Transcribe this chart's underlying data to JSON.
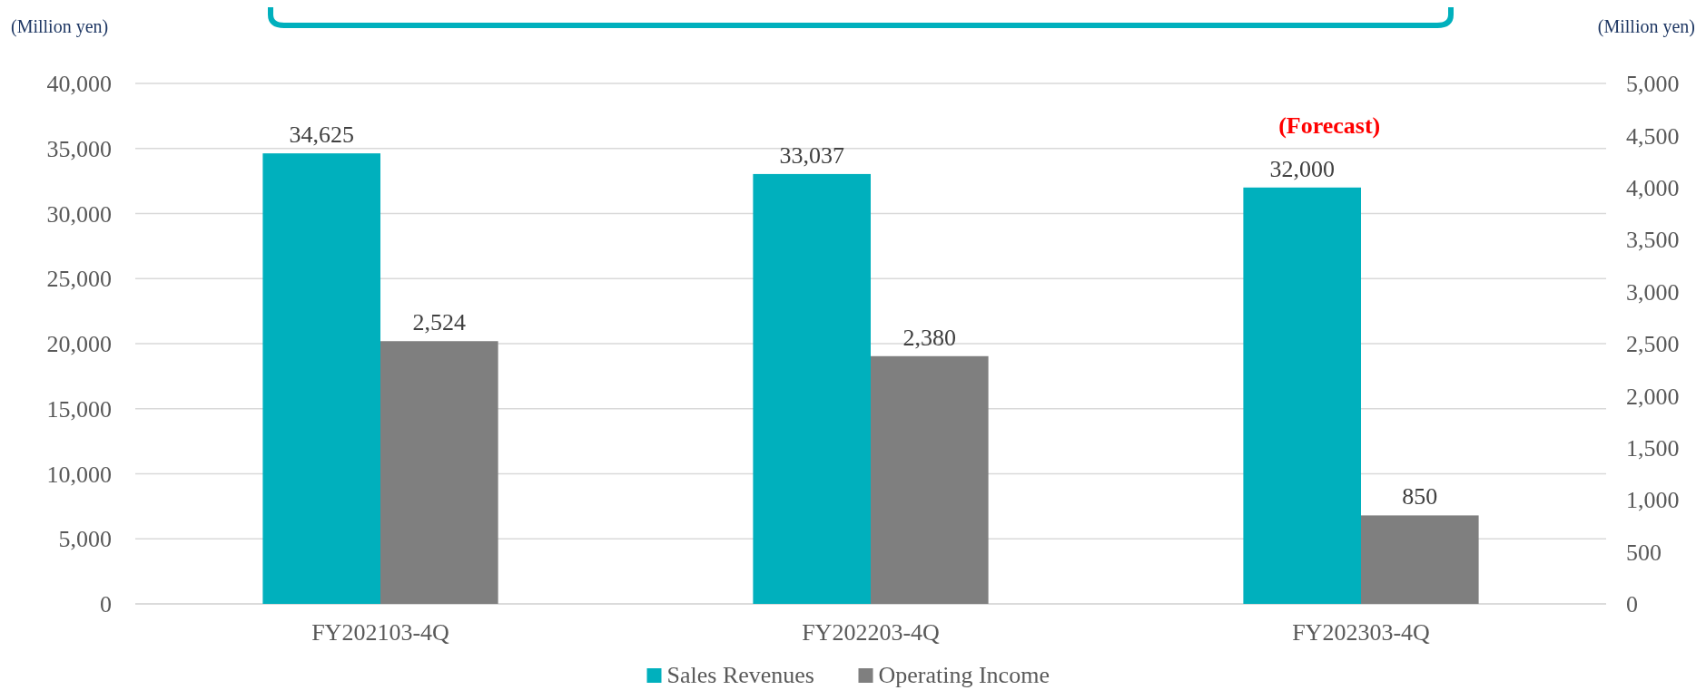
{
  "chart_data": {
    "type": "bar",
    "categories": [
      "FY202103-4Q",
      "FY202203-4Q",
      "FY202303-4Q"
    ],
    "series": [
      {
        "name": "Sales Revenues",
        "color": "#00b0bd",
        "values": [
          34625,
          33037,
          32000
        ],
        "value_labels": [
          "34,625",
          "33,037",
          "32,000"
        ]
      },
      {
        "name": "Operating Income",
        "color": "#7f7f7f",
        "values": [
          2524,
          2380,
          850
        ],
        "value_labels": [
          "2,524",
          "2,380",
          "850"
        ],
        "axis": "y2"
      }
    ],
    "ylabel": "(Million yen)",
    "y2label": "(Million yen)",
    "ylim": [
      0,
      40000
    ],
    "yticks": [
      {
        "value": 0,
        "label": "0"
      },
      {
        "value": 5000,
        "label": "5,000"
      },
      {
        "value": 10000,
        "label": "10,000"
      },
      {
        "value": 15000,
        "label": "15,000"
      },
      {
        "value": 20000,
        "label": "20,000"
      },
      {
        "value": 25000,
        "label": "25,000"
      },
      {
        "value": 30000,
        "label": "30,000"
      },
      {
        "value": 35000,
        "label": "35,000"
      },
      {
        "value": 40000,
        "label": "40,000"
      }
    ],
    "y2lim": [
      0,
      5000
    ],
    "y2ticks": [
      {
        "value": 0,
        "label": "0"
      },
      {
        "value": 500,
        "label": "500"
      },
      {
        "value": 1000,
        "label": "1,000"
      },
      {
        "value": 1500,
        "label": "1,500"
      },
      {
        "value": 2000,
        "label": "2,000"
      },
      {
        "value": 2500,
        "label": "2,500"
      },
      {
        "value": 3000,
        "label": "3,000"
      },
      {
        "value": 3500,
        "label": "3,500"
      },
      {
        "value": 4000,
        "label": "4,000"
      },
      {
        "value": 4500,
        "label": "4,500"
      },
      {
        "value": 5000,
        "label": "5,000"
      }
    ],
    "annotations": [
      {
        "text": "(Forecast)",
        "x": "FY202303-4Q",
        "y": 32000
      }
    ],
    "grid": "y",
    "legend": "bottom"
  }
}
